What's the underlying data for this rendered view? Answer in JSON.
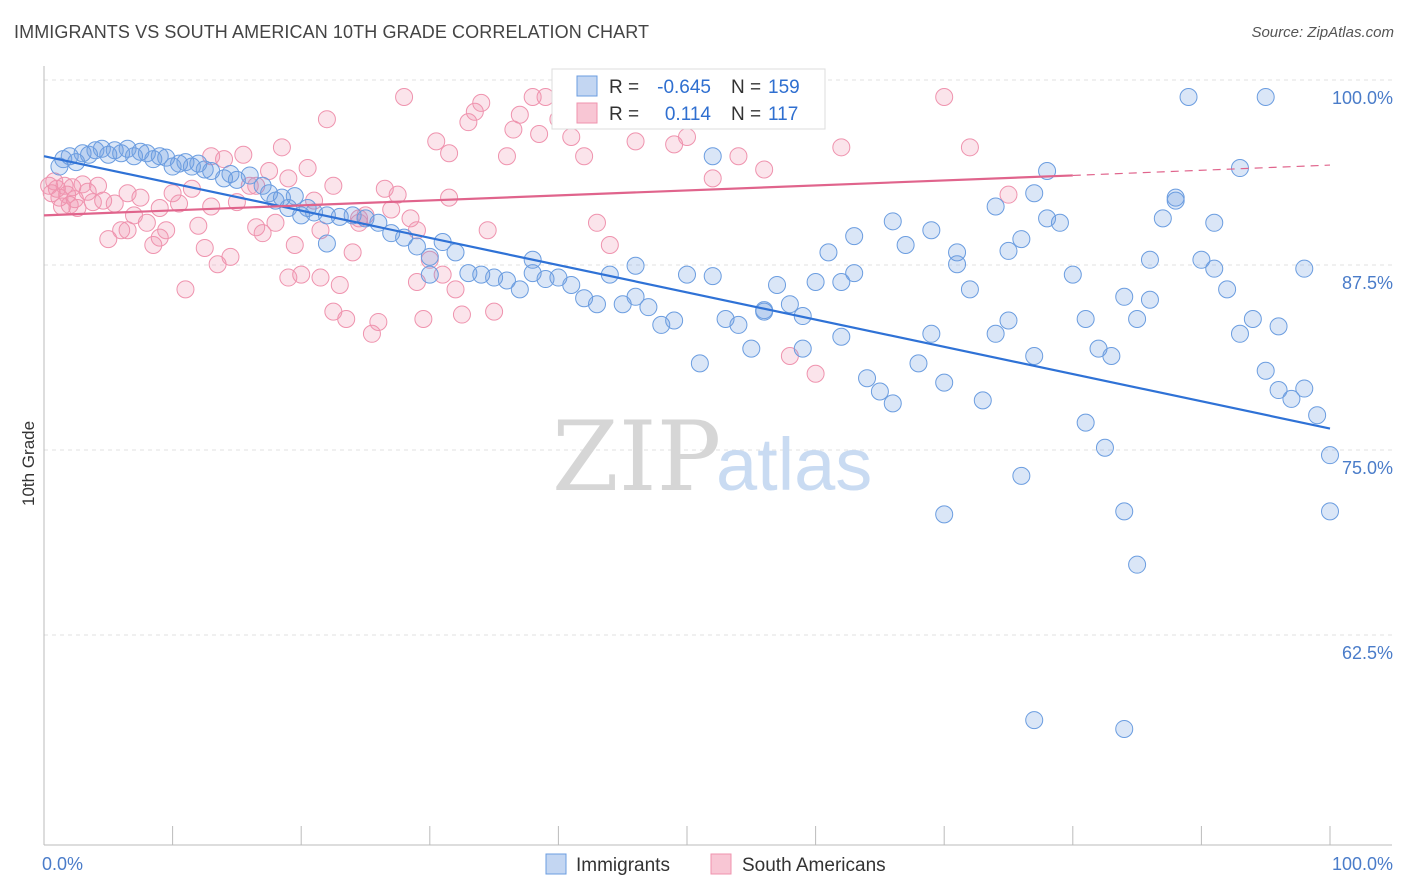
{
  "title": "IMMIGRANTS VS SOUTH AMERICAN 10TH GRADE CORRELATION CHART",
  "source": "Source: ZipAtlas.com",
  "watermark": {
    "zip": "ZIP",
    "atlas": "atlas"
  },
  "colors": {
    "immigrants": "#6b9de0",
    "immigrants_line": "#2f72d6",
    "south_americans": "#ef93ae",
    "south_americans_line": "#e0648c",
    "tick": "#4a7cc9",
    "grid": "#dddddd"
  },
  "legend": {
    "r_label": "R =",
    "n_label": "N =",
    "immigrants": {
      "r": "-0.645",
      "n": "159"
    },
    "south_americans": {
      "r": "0.114",
      "n": "117"
    }
  },
  "chart_data": {
    "type": "scatter",
    "xlabel": "",
    "ylabel": "10th Grade",
    "xlim": [
      0,
      100
    ],
    "ylim": [
      50,
      101.5
    ],
    "x_tick_labels": [
      "0.0%",
      "100.0%"
    ],
    "y_ticks": [
      62.5,
      75.0,
      87.5,
      100.0
    ],
    "y_tick_labels": [
      "62.5%",
      "75.0%",
      "87.5%",
      "100.0%"
    ],
    "grid": "horizontal dashed",
    "legend_position": "top-center",
    "series": [
      {
        "name": "Immigrants",
        "trend": {
          "x": [
            0,
            100
          ],
          "y": [
            96.0,
            77.6
          ],
          "dashed_after": null
        },
        "points": [
          [
            1.2,
            95.3
          ],
          [
            1.5,
            95.8
          ],
          [
            2,
            96
          ],
          [
            2.5,
            95.6
          ],
          [
            3,
            96.2
          ],
          [
            3.5,
            96.1
          ],
          [
            4,
            96.4
          ],
          [
            4.5,
            96.5
          ],
          [
            5,
            96.1
          ],
          [
            5.5,
            96.4
          ],
          [
            6,
            96.2
          ],
          [
            6.5,
            96.5
          ],
          [
            7,
            96.0
          ],
          [
            7.5,
            96.3
          ],
          [
            8,
            96.2
          ],
          [
            8.5,
            95.8
          ],
          [
            9,
            96.0
          ],
          [
            9.5,
            95.9
          ],
          [
            10,
            95.3
          ],
          [
            10.5,
            95.5
          ],
          [
            11,
            95.6
          ],
          [
            11.5,
            95.3
          ],
          [
            12,
            95.5
          ],
          [
            12.5,
            95.1
          ],
          [
            13,
            95.0
          ],
          [
            14,
            94.5
          ],
          [
            14.5,
            94.8
          ],
          [
            15,
            94.4
          ],
          [
            16,
            94.7
          ],
          [
            17,
            94.0
          ],
          [
            17.5,
            93.5
          ],
          [
            18,
            93.0
          ],
          [
            18.5,
            93.2
          ],
          [
            19,
            92.5
          ],
          [
            19.5,
            93.3
          ],
          [
            20,
            92.0
          ],
          [
            20.5,
            92.5
          ],
          [
            21,
            92.2
          ],
          [
            22,
            92.0
          ],
          [
            23,
            91.9
          ],
          [
            24,
            92.0
          ],
          [
            25,
            91.8
          ],
          [
            26,
            91.5
          ],
          [
            27,
            90.8
          ],
          [
            28,
            90.5
          ],
          [
            29,
            89.9
          ],
          [
            30,
            89.2
          ],
          [
            31,
            90.2
          ],
          [
            32,
            89.5
          ],
          [
            33,
            88.1
          ],
          [
            34,
            88.0
          ],
          [
            35,
            87.8
          ],
          [
            36,
            87.6
          ],
          [
            37,
            87.0
          ],
          [
            38,
            88.1
          ],
          [
            39,
            87.7
          ],
          [
            40,
            87.8
          ],
          [
            41,
            87.3
          ],
          [
            42,
            86.4
          ],
          [
            43,
            86.0
          ],
          [
            44,
            88.0
          ],
          [
            45,
            86.0
          ],
          [
            46,
            86.5
          ],
          [
            47,
            85.8
          ],
          [
            48,
            84.6
          ],
          [
            49,
            84.9
          ],
          [
            50,
            88.0
          ],
          [
            51,
            82.0
          ],
          [
            52,
            87.9
          ],
          [
            53,
            85.0
          ],
          [
            54,
            84.6
          ],
          [
            55,
            83.0
          ],
          [
            56,
            85.5
          ],
          [
            57,
            87.3
          ],
          [
            58,
            86.0
          ],
          [
            59,
            85.2
          ],
          [
            60,
            87.5
          ],
          [
            61,
            89.5
          ],
          [
            62,
            87.5
          ],
          [
            63,
            88.1
          ],
          [
            64,
            81.0
          ],
          [
            65,
            80.1
          ],
          [
            66,
            79.3
          ],
          [
            67,
            90.0
          ],
          [
            68,
            82.0
          ],
          [
            69,
            84.0
          ],
          [
            70,
            80.7
          ],
          [
            71,
            89.5
          ],
          [
            72,
            87.0
          ],
          [
            73,
            79.5
          ],
          [
            74,
            92.6
          ],
          [
            75,
            89.6
          ],
          [
            76,
            90.4
          ],
          [
            77,
            93.5
          ],
          [
            78,
            91.8
          ],
          [
            79,
            91.5
          ],
          [
            80,
            88.0
          ],
          [
            81,
            85.0
          ],
          [
            82,
            83.0
          ],
          [
            83,
            82.5
          ],
          [
            84,
            86.5
          ],
          [
            85,
            85.0
          ],
          [
            86,
            89.0
          ],
          [
            87,
            91.8
          ],
          [
            88,
            93.2
          ],
          [
            89,
            100
          ],
          [
            90,
            89.0
          ],
          [
            91,
            88.4
          ],
          [
            92,
            87.0
          ],
          [
            93,
            84.0
          ],
          [
            94,
            85.0
          ],
          [
            95,
            81.5
          ],
          [
            96,
            80.2
          ],
          [
            97,
            79.6
          ],
          [
            98,
            88.4
          ],
          [
            99,
            78.5
          ],
          [
            100,
            72.0
          ],
          [
            52,
            96.0
          ],
          [
            59,
            83.0
          ],
          [
            63,
            90.6
          ],
          [
            66,
            91.6
          ],
          [
            69,
            91.0
          ],
          [
            71,
            88.7
          ],
          [
            74,
            84.0
          ],
          [
            77,
            82.5
          ],
          [
            81,
            78.0
          ],
          [
            84,
            72.0
          ],
          [
            86,
            86.3
          ],
          [
            88,
            93.0
          ],
          [
            91,
            91.5
          ],
          [
            93,
            95.2
          ],
          [
            95,
            100
          ],
          [
            96,
            84.5
          ],
          [
            98,
            80.3
          ],
          [
            100,
            75.8
          ],
          [
            82.5,
            76.3
          ],
          [
            76,
            74.4
          ],
          [
            85,
            68.4
          ],
          [
            84,
            57.3
          ],
          [
            77,
            57.9
          ],
          [
            78,
            95.0
          ],
          [
            70,
            71.8
          ],
          [
            75,
            84.9
          ],
          [
            62,
            83.8
          ],
          [
            56,
            85.6
          ],
          [
            46,
            88.6
          ],
          [
            38,
            89.0
          ],
          [
            30,
            88.0
          ],
          [
            22,
            90.1
          ]
        ]
      },
      {
        "name": "South Americans",
        "trend": {
          "x": [
            0,
            80,
            100
          ],
          "y": [
            92.0,
            94.7,
            95.4
          ],
          "dashed_after": 80
        },
        "points": [
          [
            0.4,
            94.0
          ],
          [
            0.6,
            93.5
          ],
          [
            0.8,
            94.3
          ],
          [
            1.0,
            93.8
          ],
          [
            1.2,
            93.2
          ],
          [
            1.4,
            92.6
          ],
          [
            1.6,
            94.0
          ],
          [
            1.8,
            93.4
          ],
          [
            2.0,
            92.7
          ],
          [
            2.2,
            93.9
          ],
          [
            2.4,
            93.1
          ],
          [
            2.6,
            92.5
          ],
          [
            3.0,
            94.1
          ],
          [
            3.4,
            93.6
          ],
          [
            3.8,
            92.9
          ],
          [
            4.2,
            94.0
          ],
          [
            4.6,
            93.0
          ],
          [
            5.0,
            90.4
          ],
          [
            5.5,
            92.8
          ],
          [
            6.0,
            91.0
          ],
          [
            6.5,
            93.5
          ],
          [
            7.0,
            92.0
          ],
          [
            7.5,
            93.2
          ],
          [
            8.0,
            91.5
          ],
          [
            8.5,
            90.0
          ],
          [
            9.0,
            92.5
          ],
          [
            9.5,
            91.0
          ],
          [
            10.0,
            93.5
          ],
          [
            10.5,
            92.8
          ],
          [
            11.0,
            87.0
          ],
          [
            11.5,
            93.8
          ],
          [
            12.0,
            91.3
          ],
          [
            12.5,
            89.8
          ],
          [
            13.0,
            92.6
          ],
          [
            13.5,
            88.7
          ],
          [
            14.0,
            95.8
          ],
          [
            14.5,
            89.2
          ],
          [
            15.0,
            92.9
          ],
          [
            15.5,
            96.1
          ],
          [
            16.0,
            94.0
          ],
          [
            16.5,
            91.2
          ],
          [
            17.0,
            90.8
          ],
          [
            17.5,
            95.0
          ],
          [
            18.0,
            91.5
          ],
          [
            18.5,
            96.6
          ],
          [
            19.0,
            87.8
          ],
          [
            19.5,
            90.0
          ],
          [
            20.0,
            88.0
          ],
          [
            20.5,
            95.2
          ],
          [
            21.0,
            93.0
          ],
          [
            21.5,
            91.0
          ],
          [
            22.0,
            98.5
          ],
          [
            22.5,
            94.0
          ],
          [
            23.0,
            87.3
          ],
          [
            23.5,
            85.0
          ],
          [
            24.0,
            89.5
          ],
          [
            24.5,
            91.8
          ],
          [
            25.0,
            92.0
          ],
          [
            25.5,
            84.0
          ],
          [
            26.0,
            84.8
          ],
          [
            26.5,
            93.8
          ],
          [
            27.0,
            92.4
          ],
          [
            27.5,
            93.4
          ],
          [
            28.0,
            100
          ],
          [
            28.5,
            91.8
          ],
          [
            29.0,
            87.5
          ],
          [
            29.5,
            85.0
          ],
          [
            30.0,
            89.0
          ],
          [
            30.5,
            97.0
          ],
          [
            31.0,
            88.0
          ],
          [
            31.5,
            96.2
          ],
          [
            32.0,
            87.0
          ],
          [
            32.5,
            85.3
          ],
          [
            33.0,
            98.3
          ],
          [
            33.5,
            99.0
          ],
          [
            34.0,
            99.6
          ],
          [
            34.5,
            91.0
          ],
          [
            35.0,
            85.5
          ],
          [
            36.0,
            96.0
          ],
          [
            36.5,
            97.8
          ],
          [
            37.0,
            98.8
          ],
          [
            38.0,
            100
          ],
          [
            38.5,
            97.5
          ],
          [
            39.0,
            100
          ],
          [
            40.0,
            98.5
          ],
          [
            41.0,
            97.3
          ],
          [
            42.0,
            96.0
          ],
          [
            43.0,
            91.5
          ],
          [
            44.0,
            90.0
          ],
          [
            45.0,
            99.5
          ],
          [
            46.0,
            97.0
          ],
          [
            47.0,
            99.0
          ],
          [
            48.0,
            98.8
          ],
          [
            49.0,
            96.8
          ],
          [
            50.0,
            97.3
          ],
          [
            52.0,
            94.5
          ],
          [
            54.0,
            96.0
          ],
          [
            56.0,
            95.1
          ],
          [
            58.0,
            82.5
          ],
          [
            60.0,
            81.3
          ],
          [
            62.0,
            96.6
          ],
          [
            70.0,
            100
          ],
          [
            72.0,
            96.6
          ],
          [
            75.0,
            93.4
          ],
          [
            13.0,
            96.0
          ],
          [
            19.0,
            94.5
          ],
          [
            21.5,
            87.8
          ],
          [
            22.5,
            85.5
          ],
          [
            24.5,
            91.5
          ],
          [
            29.0,
            91.0
          ],
          [
            31.5,
            93.2
          ],
          [
            16.5,
            94.0
          ],
          [
            6.5,
            91.0
          ],
          [
            9.0,
            90.5
          ]
        ]
      }
    ]
  },
  "bottom_legend": [
    {
      "label": "Immigrants"
    },
    {
      "label": "South Americans"
    }
  ]
}
